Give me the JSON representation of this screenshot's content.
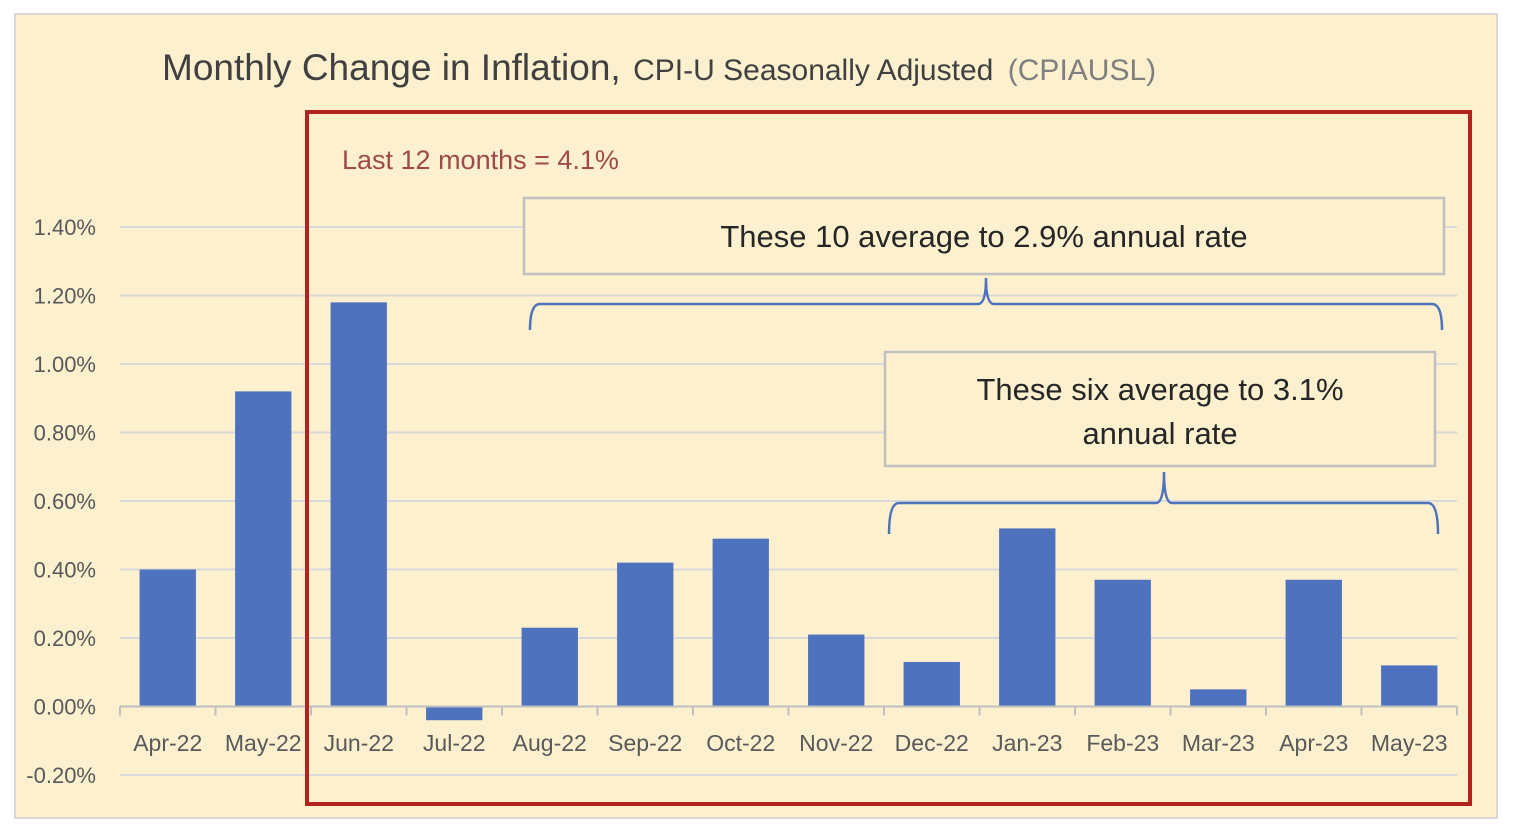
{
  "chart_data": {
    "type": "bar",
    "title": "Monthly Change in Inflation,",
    "subtitle": "CPI-U Seasonally Adjusted",
    "series_code": "(CPIAUSL)",
    "categories": [
      "Apr-22",
      "May-22",
      "Jun-22",
      "Jul-22",
      "Aug-22",
      "Sep-22",
      "Oct-22",
      "Nov-22",
      "Dec-22",
      "Jan-23",
      "Feb-23",
      "Mar-23",
      "Apr-23",
      "May-23"
    ],
    "values": [
      0.4,
      0.92,
      1.18,
      -0.04,
      0.23,
      0.42,
      0.49,
      0.21,
      0.13,
      0.52,
      0.37,
      0.05,
      0.37,
      0.12
    ],
    "ylim": [
      -0.2,
      1.4
    ],
    "yticks": [
      "-0.20%",
      "0.00%",
      "0.20%",
      "0.40%",
      "0.60%",
      "0.80%",
      "1.00%",
      "1.20%",
      "1.40%"
    ],
    "ytick_values": [
      -0.2,
      0,
      0.2,
      0.4,
      0.6,
      0.8,
      1.0,
      1.2,
      1.4
    ],
    "bar_color": "#4f72be",
    "gridlines": true,
    "annotations": {
      "last12": "Last 12 months = 4.1%",
      "ten_avg": "These 10 average to 2.9% annual rate",
      "six_avg_line1": "These six average to 3.1%",
      "six_avg_line2": "annual rate"
    },
    "highlight_box_color": "#b3231d"
  }
}
